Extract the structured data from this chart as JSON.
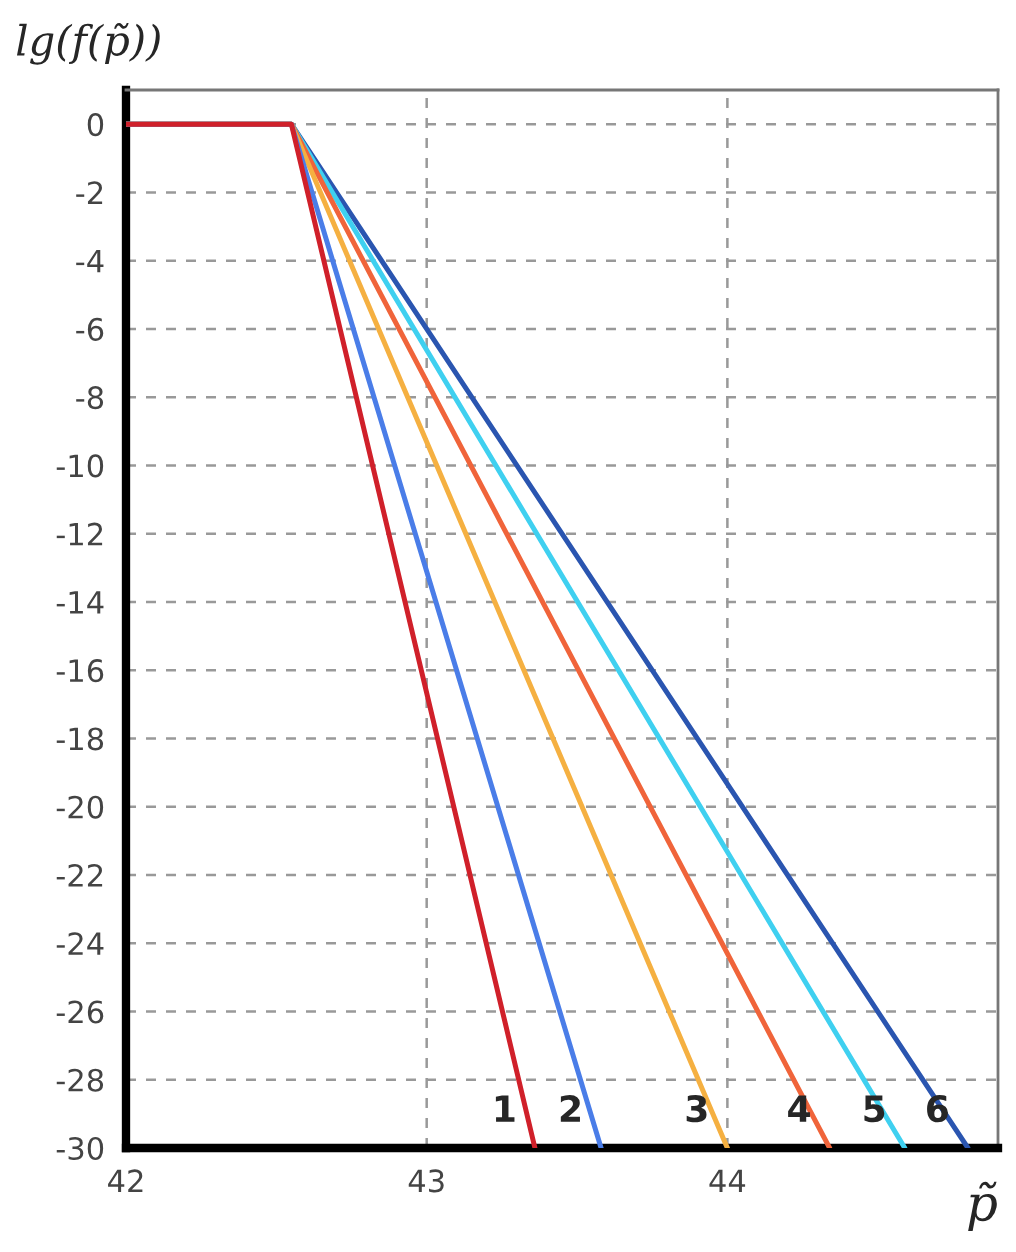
{
  "chart_data": {
    "type": "line",
    "xlabel": "p̃",
    "ylabel": "lg(f(p̃))",
    "series": [
      {
        "name": "1",
        "color": "#d0202a",
        "x": [
          42,
          42.55,
          43.36
        ],
        "values": [
          0,
          0,
          -30
        ]
      },
      {
        "name": "2",
        "color": "#4a7de8",
        "x": [
          42,
          42.55,
          43.58
        ],
        "values": [
          0,
          0,
          -30
        ]
      },
      {
        "name": "3",
        "color": "#f5b041",
        "x": [
          42,
          42.55,
          44.0
        ],
        "values": [
          0,
          0,
          -30
        ]
      },
      {
        "name": "4",
        "color": "#f0643a",
        "x": [
          42,
          42.55,
          44.34
        ],
        "values": [
          0,
          0,
          -30
        ]
      },
      {
        "name": "5",
        "color": "#3fd0f0",
        "x": [
          42,
          42.55,
          44.59
        ],
        "values": [
          0,
          0,
          -30
        ]
      },
      {
        "name": "6",
        "color": "#2a55b0",
        "x": [
          42,
          42.55,
          44.8
        ],
        "values": [
          0,
          0,
          -30
        ]
      }
    ],
    "xlim": [
      42,
      44.9
    ],
    "ylim": [
      -30,
      1
    ],
    "xticks": [
      42,
      43,
      44
    ],
    "yticks": [
      0,
      -2,
      -4,
      -6,
      -8,
      -10,
      -12,
      -14,
      -16,
      -18,
      -20,
      -22,
      -24,
      -26,
      -28,
      -30
    ],
    "grid": true,
    "legend": false,
    "line_style": "solid",
    "marker": "none"
  }
}
